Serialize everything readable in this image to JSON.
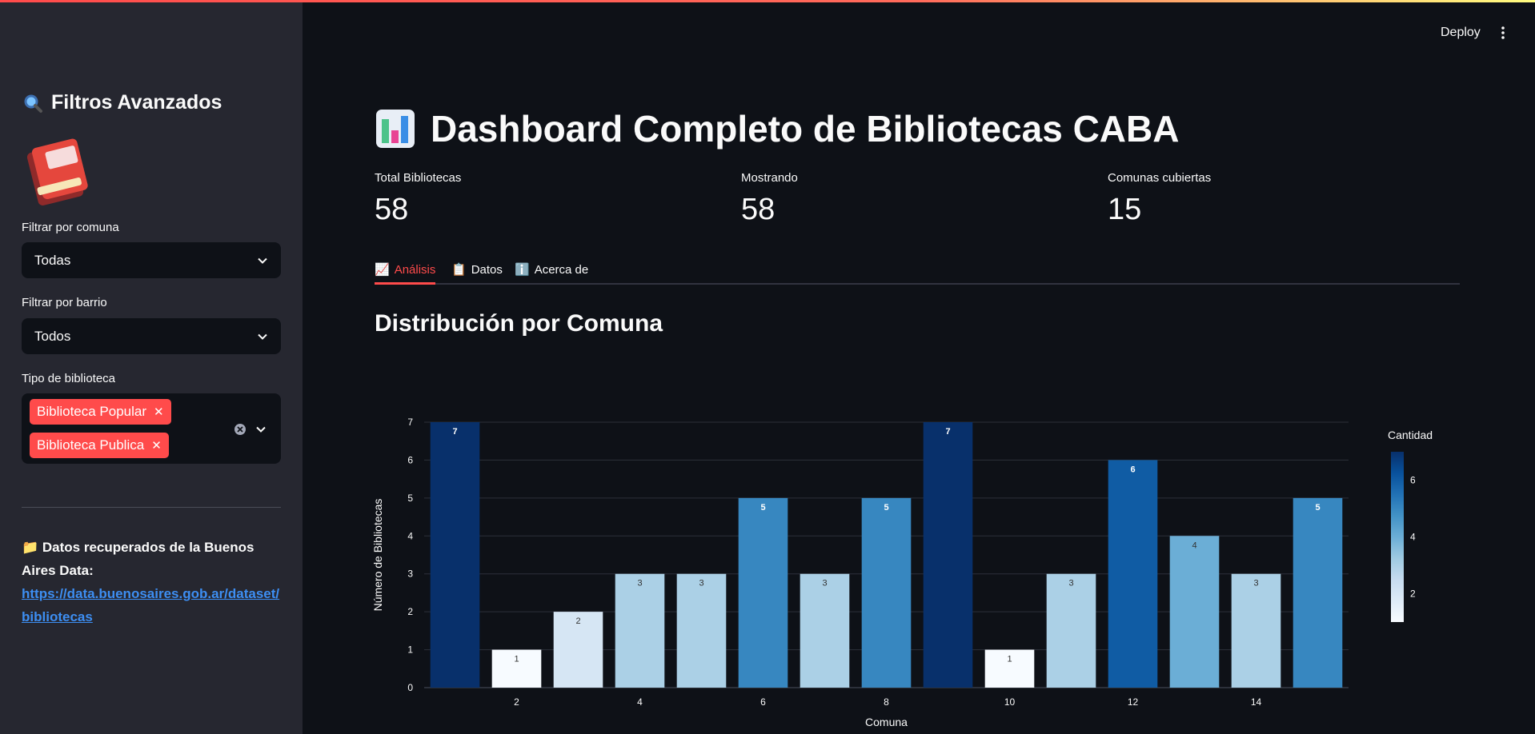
{
  "sidebar": {
    "title": "Filtros Avanzados",
    "filters": {
      "comuna_label": "Filtrar por comuna",
      "comuna_value": "Todas",
      "barrio_label": "Filtrar por barrio",
      "barrio_value": "Todos",
      "tipo_label": "Tipo de biblioteca",
      "tipo_tags": [
        "Biblioteca Popular",
        "Biblioteca Publica"
      ]
    },
    "source": {
      "text": "Datos recuperados de la Buenos Aires Data:",
      "link": "https://data.buenosaires.gob.ar/dataset/bibliotecas"
    }
  },
  "header": {
    "deploy_label": "Deploy"
  },
  "main": {
    "title": "Dashboard Completo de Bibliotecas CABA",
    "metrics": [
      {
        "label": "Total Bibliotecas",
        "value": "58"
      },
      {
        "label": "Mostrando",
        "value": "58"
      },
      {
        "label": "Comunas cubiertas",
        "value": "15"
      }
    ],
    "tabs": [
      {
        "icon": "📈",
        "label": "Análisis"
      },
      {
        "icon": "📋",
        "label": "Datos"
      },
      {
        "icon": "ℹ️",
        "label": "Acerca de"
      }
    ],
    "section_title": "Distribución por Comuna"
  },
  "colors": {
    "accent": "#ff4b4b",
    "link": "#3d8ef2",
    "sidebar_bg": "#262730",
    "main_bg": "#0e1117"
  },
  "icons": [
    "magnifier-icon",
    "book-icon",
    "chart-emoji-icon",
    "chevron-down-icon",
    "clear-icon",
    "kebab-menu-icon"
  ],
  "chart_data": {
    "type": "bar",
    "categories": [
      1,
      2,
      3,
      4,
      5,
      6,
      7,
      8,
      9,
      10,
      11,
      12,
      13,
      14,
      15
    ],
    "values": [
      7,
      1,
      2,
      3,
      3,
      5,
      3,
      5,
      7,
      1,
      3,
      6,
      4,
      3,
      5
    ],
    "xlabel": "Comuna",
    "ylabel": "Número de Bibliotecas",
    "ylim": [
      0,
      7
    ],
    "yticks": [
      0,
      1,
      2,
      3,
      4,
      5,
      6,
      7
    ],
    "xticks": [
      2,
      4,
      6,
      8,
      10,
      12,
      14
    ],
    "colorbar": {
      "title": "Cantidad",
      "ticks": [
        2,
        4,
        6
      ],
      "range": [
        1,
        7
      ],
      "colorscale": "Blues"
    },
    "grid": true
  }
}
